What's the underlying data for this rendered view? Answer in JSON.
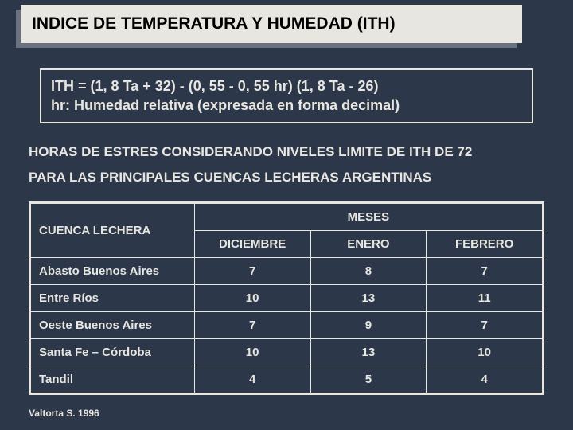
{
  "colors": {
    "background": "#2c3749",
    "panel": "#e7e6e0",
    "shadow": "#6a7282",
    "text_light": "#e7e6e0",
    "text_dark": "#000000",
    "border": "#e7e6e0"
  },
  "title": "INDICE DE TEMPERATURA Y HUMEDAD (ITH)",
  "formula": {
    "line1": "ITH = (1, 8 Ta + 32) - (0, 55 - 0, 55 hr) (1, 8 Ta - 26)",
    "line2": " hr: Humedad relativa (expresada en forma decimal)"
  },
  "subheading": {
    "line1": "HORAS DE ESTRES CONSIDERANDO NIVELES LIMITE DE ITH DE 72",
    "line2": "PARA LAS PRINCIPALES CUENCAS LECHERAS ARGENTINAS"
  },
  "table": {
    "rowHeader": "CUENCA LECHERA",
    "spanHeader": "MESES",
    "columns": [
      "DICIEMBRE",
      "ENERO",
      "FEBRERO"
    ],
    "rows": [
      {
        "label": "Abasto Buenos Aires",
        "values": [
          "7",
          "8",
          "7"
        ]
      },
      {
        "label": "Entre Ríos",
        "values": [
          "10",
          "13",
          "11"
        ]
      },
      {
        "label": "Oeste Buenos Aires",
        "values": [
          "7",
          "9",
          "7"
        ]
      },
      {
        "label": "Santa Fe – Córdoba",
        "values": [
          "10",
          "13",
          "10"
        ]
      },
      {
        "label": "Tandil",
        "values": [
          "4",
          "5",
          "4"
        ]
      }
    ]
  },
  "source": "Valtorta S. 1996"
}
